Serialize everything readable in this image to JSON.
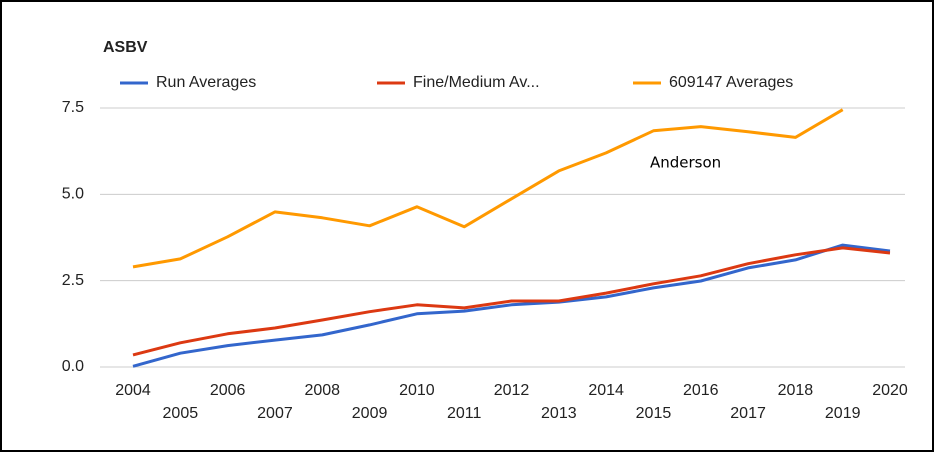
{
  "chart_data": {
    "type": "line",
    "title": "ASBV",
    "categories": [
      "2004",
      "2005",
      "2006",
      "2007",
      "2008",
      "2009",
      "2010",
      "2011",
      "2012",
      "2013",
      "2014",
      "2015",
      "2016",
      "2017",
      "2018",
      "2019",
      "2020"
    ],
    "series": [
      {
        "name": "Run Averages",
        "color": "#3366cc",
        "values": [
          0.02,
          0.4,
          0.62,
          0.78,
          0.93,
          1.22,
          1.54,
          1.62,
          1.8,
          1.88,
          2.03,
          2.29,
          2.49,
          2.87,
          3.1,
          3.53,
          3.36
        ]
      },
      {
        "name": "Fine/Medium Av...",
        "color": "#dc3912",
        "values": [
          0.35,
          0.7,
          0.96,
          1.13,
          1.36,
          1.6,
          1.8,
          1.71,
          1.91,
          1.91,
          2.14,
          2.41,
          2.64,
          2.99,
          3.25,
          3.45,
          3.3
        ]
      },
      {
        "name": "609147 Averages",
        "color": "#ff9900",
        "values": [
          2.9,
          3.13,
          3.77,
          4.49,
          4.32,
          4.09,
          4.64,
          4.06,
          4.87,
          5.68,
          6.2,
          6.84,
          6.96,
          6.81,
          6.65,
          7.45,
          null
        ]
      }
    ],
    "ylim": [
      0,
      7.5
    ],
    "yticks": [
      {
        "value": 0,
        "label": "0.0"
      },
      {
        "value": 2.5,
        "label": "2.5"
      },
      {
        "value": 5,
        "label": "5.0"
      },
      {
        "value": 7.5,
        "label": "7.5"
      }
    ],
    "grid": true,
    "legend": "top",
    "annotation": "Anderson"
  }
}
